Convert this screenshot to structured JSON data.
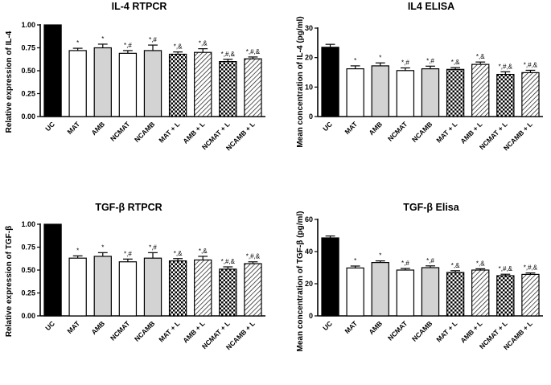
{
  "chart_data": [
    {
      "type": "bar",
      "title": "IL-4 RTPCR",
      "xlabel": "",
      "ylabel": "Relative expression of IL-4",
      "ylim": [
        0,
        1.0
      ],
      "yticks": [
        "0.00",
        "0.25",
        "0.50",
        "0.75",
        "1.00"
      ],
      "categories": [
        "UC",
        "MAT",
        "AMB",
        "NCMAT",
        "NCAMB",
        "MAT + L",
        "AMB + L",
        "NCMAT + L",
        "NCAMB + L"
      ],
      "values": [
        1.0,
        0.72,
        0.75,
        0.69,
        0.72,
        0.68,
        0.7,
        0.6,
        0.63
      ],
      "errors": [
        0,
        0.025,
        0.04,
        0.03,
        0.06,
        0.025,
        0.04,
        0.025,
        0.02
      ],
      "annotations": [
        "",
        "*",
        "*",
        "*,#",
        "*,#",
        "*,&",
        "*,&",
        "*,#,&",
        "*,#,&"
      ],
      "fills": [
        "solid-black",
        "white",
        "light-gray",
        "white",
        "light-gray",
        "checker",
        "diagonal-hatch",
        "checker",
        "diagonal-hatch"
      ]
    },
    {
      "type": "bar",
      "title": "IL4 ELISA",
      "xlabel": "",
      "ylabel": "Mean concentration of IL-4 (pg/ml)",
      "ylim": [
        0,
        30
      ],
      "yticks": [
        "0",
        "10",
        "20",
        "30"
      ],
      "categories": [
        "UC",
        "MAT",
        "AMB",
        "NCMAT",
        "NCAMB",
        "MAT + L",
        "AMB + L",
        "NCMAT + L",
        "NCAMB + L"
      ],
      "values": [
        23.5,
        16.2,
        17.2,
        15.6,
        16.2,
        16.0,
        17.7,
        14.3,
        14.9
      ],
      "errors": [
        1.0,
        1.0,
        1.0,
        0.9,
        0.9,
        0.6,
        0.8,
        0.9,
        0.8
      ],
      "annotations": [
        "",
        "*",
        "*",
        "*,#",
        "*,#",
        "*,&",
        "*,&",
        "*,#,&",
        "*,#,&"
      ],
      "fills": [
        "solid-black",
        "white",
        "light-gray",
        "white",
        "light-gray",
        "checker",
        "diagonal-hatch",
        "checker",
        "diagonal-hatch"
      ]
    },
    {
      "type": "bar",
      "title": "TGF-β RTPCR",
      "xlabel": "",
      "ylabel": "Relative expression of TGF-β",
      "ylim": [
        0,
        1.0
      ],
      "yticks": [
        "0.00",
        "0.25",
        "0.50",
        "0.75",
        "1.00"
      ],
      "categories": [
        "UC",
        "MAT",
        "AMB",
        "NCMAT",
        "NCAMB",
        "MAT + L",
        "AMB + L",
        "NCMAT + L",
        "NCAMB + L"
      ],
      "values": [
        1.0,
        0.63,
        0.65,
        0.59,
        0.63,
        0.6,
        0.61,
        0.51,
        0.57
      ],
      "errors": [
        0,
        0.025,
        0.04,
        0.03,
        0.06,
        0.025,
        0.04,
        0.025,
        0.02
      ],
      "annotations": [
        "",
        "*",
        "*",
        "*,#",
        "*,#",
        "*,&",
        "*,&",
        "*,#,&",
        "*,#,&"
      ],
      "fills": [
        "solid-black",
        "white",
        "light-gray",
        "white",
        "light-gray",
        "checker",
        "diagonal-hatch",
        "checker",
        "diagonal-hatch"
      ]
    },
    {
      "type": "bar",
      "title": "TGF-β Elisa",
      "xlabel": "",
      "ylabel": "Mean concentration of TGF-β (pg/ml)",
      "ylim": [
        0,
        60
      ],
      "yticks": [
        "0",
        "20",
        "40",
        "60"
      ],
      "categories": [
        "UC",
        "MAT",
        "AMB",
        "NCMAT",
        "NCAMB",
        "MAT + L",
        "AMB + L",
        "NCMAT + L",
        "NCAMB + L"
      ],
      "values": [
        48.5,
        29.8,
        33.2,
        28.5,
        30.0,
        27.0,
        28.5,
        25.0,
        25.8
      ],
      "errors": [
        1.2,
        1.2,
        1.0,
        1.0,
        1.1,
        1.1,
        0.8,
        0.9,
        0.9
      ],
      "annotations": [
        "",
        "*",
        "*",
        "*,#",
        "*,#",
        "*,&",
        "*,&",
        "*,#,&",
        "*,#,&"
      ],
      "fills": [
        "solid-black",
        "white",
        "light-gray",
        "white",
        "light-gray",
        "checker",
        "diagonal-hatch",
        "checker",
        "diagonal-hatch"
      ]
    }
  ]
}
